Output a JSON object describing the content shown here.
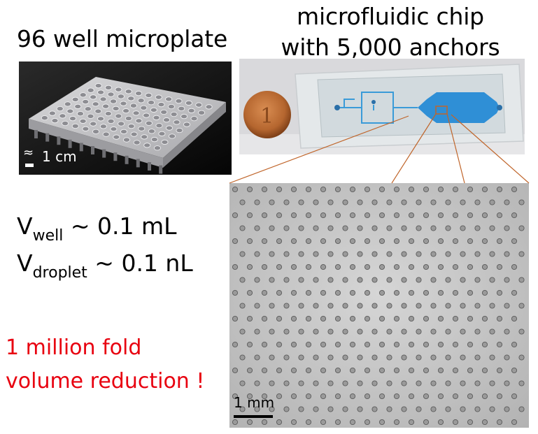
{
  "labels": {
    "plate_title": "96 well microplate",
    "chip_title_line1": "microfluidic chip",
    "chip_title_line2": "with 5,000 anchors"
  },
  "plate_scale": {
    "approx_symbol": "≈",
    "label": "1 cm"
  },
  "micrograph_scale": {
    "label": "1 mm"
  },
  "equations": {
    "well": {
      "symbol": "V",
      "subscript": "well",
      "rest": " ~ 0.1 mL"
    },
    "droplet": {
      "symbol": "V",
      "subscript": "droplet",
      "rest": " ~ 0.1 nL"
    }
  },
  "highlight": {
    "line1": "1 million fold",
    "line2": "volume reduction !",
    "color": "#e8000f"
  },
  "colors": {
    "zoom_lines": "#c0652a",
    "chip_channel": "#3a9bd8",
    "coin": "#b5662f"
  }
}
